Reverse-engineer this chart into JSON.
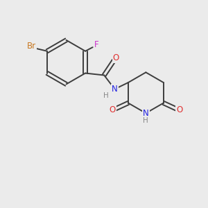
{
  "background_color": "#ebebeb",
  "bond_color": "#3d3d3d",
  "atom_colors": {
    "Br": "#c87820",
    "F": "#cc30cc",
    "O": "#e03030",
    "N": "#2020e0",
    "H": "#888888",
    "C": "#3d3d3d"
  },
  "figsize": [
    3.0,
    3.0
  ],
  "dpi": 100,
  "lw": 1.4,
  "fs": 8.5
}
